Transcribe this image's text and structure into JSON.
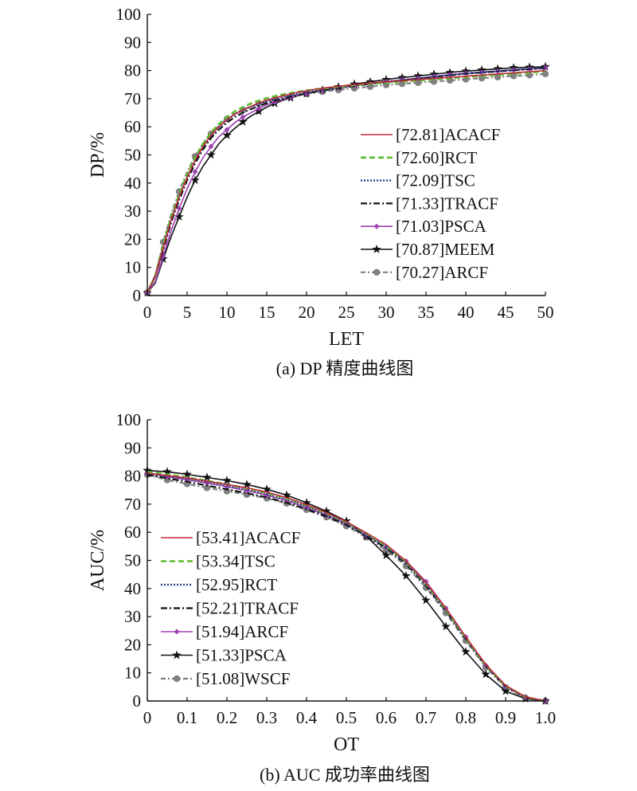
{
  "chart_data": [
    {
      "type": "line",
      "caption": "(a) DP 精度曲线图",
      "xlabel": "LET",
      "ylabel": "DP/%",
      "xlim": [
        0,
        50
      ],
      "ylim": [
        0,
        100
      ],
      "xticks": [
        "0",
        "5",
        "10",
        "15",
        "20",
        "25",
        "30",
        "35",
        "40",
        "45",
        "50"
      ],
      "yticks": [
        "0",
        "10",
        "20",
        "30",
        "40",
        "50",
        "60",
        "70",
        "80",
        "90",
        "100"
      ],
      "legend_position": "right",
      "x": [
        0,
        1,
        2,
        3,
        4,
        5,
        6,
        7,
        8,
        9,
        10,
        11,
        12,
        13,
        14,
        15,
        16,
        17,
        18,
        19,
        20,
        21,
        22,
        23,
        24,
        25,
        26,
        27,
        28,
        29,
        30,
        31,
        32,
        33,
        34,
        35,
        36,
        37,
        38,
        39,
        40,
        41,
        42,
        43,
        44,
        45,
        46,
        47,
        48,
        49,
        50
      ],
      "series": [
        {
          "name": "[72.81]ACACF",
          "color": "#c0283a",
          "values": [
            1,
            7,
            17,
            27,
            35,
            42,
            48,
            53,
            57,
            60,
            62.5,
            64.5,
            66,
            67.3,
            68.5,
            69.5,
            70.3,
            71,
            71.7,
            72.3,
            72.8,
            73.3,
            73.7,
            74.1,
            74.4,
            74.7,
            75,
            75.3,
            75.6,
            75.8,
            76,
            76.2,
            76.4,
            76.6,
            76.8,
            77,
            77.2,
            77.4,
            77.6,
            77.8,
            78,
            78.2,
            78.4,
            78.6,
            78.8,
            79,
            79.2,
            79.4,
            79.6,
            79.8,
            80
          ]
        },
        {
          "name": "[72.60]RCT",
          "color": "#5cba2c",
          "values": [
            1,
            7,
            18,
            28,
            36,
            43,
            49,
            54,
            58,
            61,
            63.5,
            65.5,
            67,
            68.3,
            69.3,
            70.2,
            70.9,
            71.5,
            72,
            72.5,
            72.9,
            73.3,
            73.6,
            73.9,
            74.2,
            74.5,
            74.8,
            75.1,
            75.3,
            75.5,
            75.7,
            75.9,
            76.1,
            76.3,
            76.5,
            76.7,
            76.9,
            77.1,
            77.3,
            77.5,
            77.7,
            77.9,
            78.1,
            78.3,
            78.5,
            78.7,
            78.9,
            79.1,
            79.3,
            79.5,
            79.7
          ]
        },
        {
          "name": "[72.09]TSC",
          "color": "#283c8c",
          "values": [
            1,
            7,
            17,
            27,
            35,
            42,
            48,
            53,
            57,
            60,
            62.5,
            64.5,
            66,
            67.2,
            68.2,
            69.1,
            69.9,
            70.6,
            71.2,
            71.8,
            72.3,
            72.8,
            73.2,
            73.6,
            74,
            74.4,
            74.8,
            75.1,
            75.4,
            75.7,
            76,
            76.3,
            76.6,
            76.9,
            77.2,
            77.5,
            77.8,
            78.1,
            78.4,
            78.7,
            79,
            79.2,
            79.4,
            79.6,
            79.8,
            80,
            80.2,
            80.4,
            80.6,
            80.8,
            81
          ]
        },
        {
          "name": "[71.33]TRACF",
          "color": "#111111",
          "values": [
            1,
            7,
            16,
            26,
            34,
            41,
            47,
            52,
            56,
            59,
            61.5,
            63.5,
            65,
            66.3,
            67.4,
            68.4,
            69.3,
            70,
            70.7,
            71.3,
            71.9,
            72.4,
            72.9,
            73.3,
            73.7,
            74.1,
            74.5,
            74.9,
            75.3,
            75.6,
            75.9,
            76.2,
            76.5,
            76.8,
            77.1,
            77.4,
            77.7,
            78,
            78.3,
            78.6,
            78.9,
            79.1,
            79.3,
            79.5,
            79.7,
            79.9,
            80.1,
            80.3,
            80.5,
            80.7,
            80.9
          ]
        },
        {
          "name": "[71.03]PSCA",
          "color": "#a040b4",
          "values": [
            1,
            5,
            14,
            23,
            31,
            38,
            44,
            49,
            53,
            56.5,
            59,
            61.5,
            63.5,
            65,
            66.5,
            67.8,
            68.8,
            69.7,
            70.5,
            71.2,
            71.8,
            72.4,
            72.9,
            73.4,
            73.8,
            74.2,
            74.6,
            75,
            75.4,
            75.8,
            76.1,
            76.4,
            76.7,
            77,
            77.3,
            77.6,
            77.9,
            78.2,
            78.5,
            78.8,
            79,
            79.2,
            79.4,
            79.6,
            79.8,
            80,
            80.2,
            80.4,
            80.6,
            80.8,
            81
          ]
        },
        {
          "name": "[70.87]MEEM",
          "color": "#111111",
          "values": [
            1,
            4.5,
            13,
            21,
            28,
            35,
            41,
            46,
            50,
            54,
            57,
            59.5,
            61.8,
            63.8,
            65.5,
            67,
            68.3,
            69.4,
            70.3,
            71.1,
            71.8,
            72.5,
            73.1,
            73.7,
            74.2,
            74.7,
            75.2,
            75.6,
            76,
            76.4,
            76.8,
            77.2,
            77.5,
            77.8,
            78.1,
            78.4,
            78.7,
            79,
            79.3,
            79.6,
            79.8,
            80,
            80.2,
            80.4,
            80.6,
            80.8,
            81,
            81.1,
            81.2,
            81.3,
            81.4
          ]
        },
        {
          "name": "[70.27]ARCF",
          "color": "#808080",
          "values": [
            1,
            7,
            19,
            29,
            37,
            44,
            49.5,
            54,
            57.5,
            60.5,
            62.8,
            64.6,
            66,
            67.2,
            68.2,
            69,
            69.7,
            70.3,
            70.8,
            71.3,
            71.7,
            72.1,
            72.5,
            72.8,
            73.1,
            73.4,
            73.7,
            74,
            74.3,
            74.6,
            74.9,
            75.1,
            75.3,
            75.5,
            75.7,
            75.9,
            76.1,
            76.3,
            76.5,
            76.7,
            76.9,
            77.1,
            77.3,
            77.5,
            77.7,
            77.9,
            78.1,
            78.2,
            78.4,
            78.6,
            78.8
          ]
        }
      ]
    },
    {
      "type": "line",
      "caption": "(b) AUC 成功率曲线图",
      "xlabel": "OT",
      "ylabel": "AUC/%",
      "xlim": [
        0,
        1
      ],
      "ylim": [
        0,
        100
      ],
      "xticks": [
        "0",
        "0.1",
        "0.2",
        "0.3",
        "0.4",
        "0.5",
        "0.6",
        "0.7",
        "0.8",
        "0.9",
        "1.0"
      ],
      "yticks": [
        "0",
        "10",
        "20",
        "30",
        "40",
        "50",
        "60",
        "70",
        "80",
        "90",
        "100"
      ],
      "legend_position": "bottom-left",
      "x": [
        0,
        0.05,
        0.1,
        0.15,
        0.2,
        0.25,
        0.3,
        0.35,
        0.4,
        0.45,
        0.5,
        0.55,
        0.6,
        0.65,
        0.7,
        0.75,
        0.8,
        0.85,
        0.9,
        0.95,
        1.0
      ],
      "series": [
        {
          "name": "[53.41]ACACF",
          "color": "#c0283a",
          "values": [
            81,
            80.2,
            79.3,
            78.2,
            77,
            75.8,
            74.3,
            72.3,
            69.8,
            67,
            63.8,
            59.8,
            55.6,
            49.8,
            42,
            33,
            22.8,
            13,
            5.5,
            1.5,
            0
          ]
        },
        {
          "name": "[53.34]TSC",
          "color": "#5cba2c",
          "values": [
            81.5,
            80.6,
            79.5,
            78.3,
            77,
            75.6,
            74,
            72,
            69.6,
            66.8,
            63.6,
            59.6,
            55.2,
            49.6,
            41.8,
            32.6,
            22.5,
            12.8,
            5.3,
            1.4,
            0
          ]
        },
        {
          "name": "[52.95]RCT",
          "color": "#283c8c",
          "values": [
            81,
            80,
            79,
            77.8,
            76.6,
            75.2,
            73.6,
            71.6,
            69.2,
            66.4,
            63.2,
            59.2,
            54.8,
            49.2,
            41.4,
            32.3,
            22.2,
            12.6,
            5.2,
            1.3,
            0
          ]
        },
        {
          "name": "[52.21]TRACF",
          "color": "#111111",
          "values": [
            80.5,
            79.2,
            78,
            76.6,
            75.3,
            73.9,
            72.4,
            70.5,
            68.2,
            65.6,
            62.6,
            58.8,
            54.4,
            48.8,
            41,
            32,
            22,
            12.5,
            5.1,
            1.3,
            0
          ]
        },
        {
          "name": "[51.94]ARCF",
          "color": "#a040b4",
          "values": [
            81,
            79.8,
            78.7,
            77.5,
            76.2,
            74.8,
            73.2,
            71.2,
            68.8,
            66.1,
            63,
            59,
            54.8,
            49.8,
            42.5,
            33,
            22.8,
            12.7,
            5,
            1.2,
            0
          ]
        },
        {
          "name": "[51.33]PSCA",
          "color": "#111111",
          "values": [
            82,
            81.5,
            80.6,
            79.5,
            78.4,
            77,
            75.3,
            73.2,
            70.5,
            67.5,
            64,
            58.6,
            51.8,
            44.5,
            35.8,
            26.5,
            17.5,
            9.5,
            3.5,
            0.8,
            0
          ]
        },
        {
          "name": "[51.08]WSCF",
          "color": "#808080",
          "values": [
            80.5,
            78.6,
            77.2,
            75.8,
            74.6,
            73.4,
            72.1,
            70.3,
            68,
            65.4,
            62.2,
            58.2,
            53.6,
            48,
            40.3,
            31.3,
            21.4,
            12,
            4.8,
            1.1,
            0
          ]
        }
      ]
    }
  ]
}
